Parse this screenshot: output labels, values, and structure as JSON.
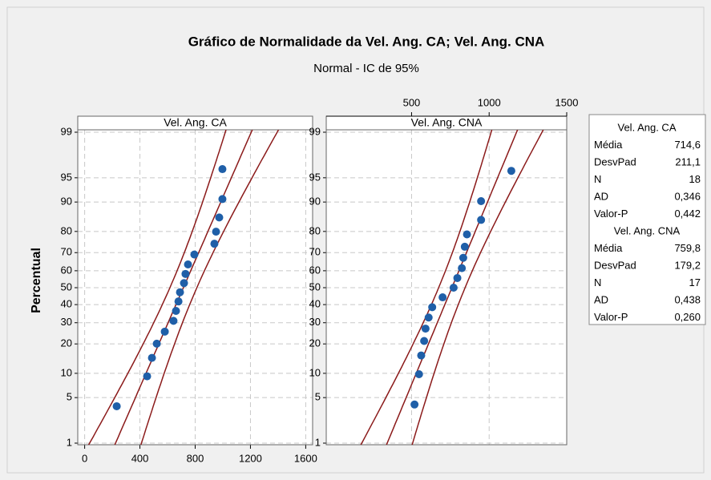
{
  "chart_data": {
    "type": "probability",
    "title": "Gráfico de Normalidade da Vel. Ang. CA; Vel. Ang. CNA",
    "subtitle": "Normal - IC de 95%",
    "ylabel": "Percentual",
    "yscale": "probability",
    "ylim": [
      1,
      99
    ],
    "yticks": [
      1,
      5,
      10,
      20,
      30,
      40,
      50,
      60,
      70,
      80,
      90,
      95,
      99
    ],
    "grid": true,
    "point_color": "#1f5fa8",
    "line_color": "#8b1a1a",
    "stat_names": [
      "Média",
      "DesvPad",
      "N",
      "AD",
      "Valor-P"
    ],
    "series": [
      {
        "name": "Vel. Ang. CA",
        "xaxis": "bottom",
        "xlim": [
          -50,
          1650
        ],
        "xticks": [
          0,
          400,
          800,
          1200,
          1600
        ],
        "x": [
          232,
          452,
          487,
          522,
          580,
          643,
          661,
          679,
          690,
          719,
          730,
          748,
          794,
          939,
          951,
          974,
          997,
          997
        ],
        "values": [
          3.8,
          9.24,
          14.67,
          20.11,
          25.54,
          30.98,
          36.41,
          41.85,
          47.28,
          52.72,
          58.15,
          63.59,
          69.02,
          74.46,
          79.89,
          85.33,
          90.76,
          96.2
        ],
        "stats": [
          714.6,
          211.1,
          18,
          0.346,
          0.442
        ],
        "stats_labels": [
          "714,6",
          "211,1",
          "18",
          "0,346",
          "0,442"
        ]
      },
      {
        "name": "Vel. Ang. CNA",
        "xaxis": "top",
        "xlim": [
          -50,
          1500
        ],
        "xticks": [
          500,
          1000,
          1500
        ],
        "x": [
          519,
          548,
          562,
          581,
          590,
          610,
          633,
          700,
          771,
          795,
          824,
          833,
          843,
          857,
          948,
          948,
          1143
        ],
        "values": [
          4.02,
          9.77,
          15.52,
          21.26,
          27.01,
          32.76,
          38.51,
          44.25,
          50.0,
          55.75,
          61.49,
          67.24,
          72.99,
          78.74,
          84.48,
          90.23,
          95.98
        ],
        "stats": [
          759.8,
          179.2,
          17,
          0.438,
          0.26
        ],
        "stats_labels": [
          "759,8",
          "179,2",
          "17",
          "0,438",
          "0,260"
        ]
      }
    ]
  }
}
